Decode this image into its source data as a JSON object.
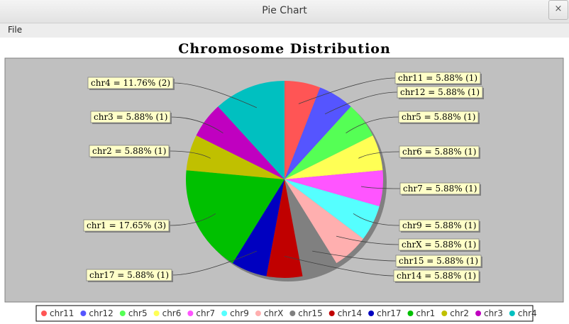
{
  "window": {
    "title": "Pie Chart",
    "close_label": "×"
  },
  "menu": {
    "file_label": "File"
  },
  "colors": {
    "plot_background": "#c0c0c0",
    "label_background": "#ffffc8"
  },
  "chart_data": {
    "type": "pie",
    "title": "Chromosome Distribution",
    "legend_position": "bottom",
    "slices": [
      {
        "name": "chr11",
        "value": 1,
        "color": "#ff5555",
        "label": "chr11 = 5.88% (1)"
      },
      {
        "name": "chr12",
        "value": 1,
        "color": "#5555ff",
        "label": "chr12 = 5.88% (1)"
      },
      {
        "name": "chr5",
        "value": 1,
        "color": "#55ff55",
        "label": "chr5 = 5.88% (1)"
      },
      {
        "name": "chr6",
        "value": 1,
        "color": "#ffff55",
        "label": "chr6 = 5.88% (1)"
      },
      {
        "name": "chr7",
        "value": 1,
        "color": "#ff55ff",
        "label": "chr7 = 5.88% (1)"
      },
      {
        "name": "chr9",
        "value": 1,
        "color": "#55ffff",
        "label": "chr9 = 5.88% (1)"
      },
      {
        "name": "chrX",
        "value": 1,
        "color": "#ffafaf",
        "label": "chrX = 5.88% (1)"
      },
      {
        "name": "chr15",
        "value": 1,
        "color": "#808080",
        "label": "chr15 = 5.88% (1)"
      },
      {
        "name": "chr14",
        "value": 1,
        "color": "#c00000",
        "label": "chr14 = 5.88% (1)"
      },
      {
        "name": "chr17",
        "value": 1,
        "color": "#0000c0",
        "label": "chr17 = 5.88% (1)"
      },
      {
        "name": "chr1",
        "value": 3,
        "color": "#00c000",
        "label": "chr1 = 17.65% (3)"
      },
      {
        "name": "chr2",
        "value": 1,
        "color": "#c0c000",
        "label": "chr2 = 5.88% (1)"
      },
      {
        "name": "chr3",
        "value": 1,
        "color": "#c000c0",
        "label": "chr3 = 5.88% (1)"
      },
      {
        "name": "chr4",
        "value": 2,
        "color": "#00c0c0",
        "label": "chr4 = 11.76% (2)"
      }
    ]
  }
}
